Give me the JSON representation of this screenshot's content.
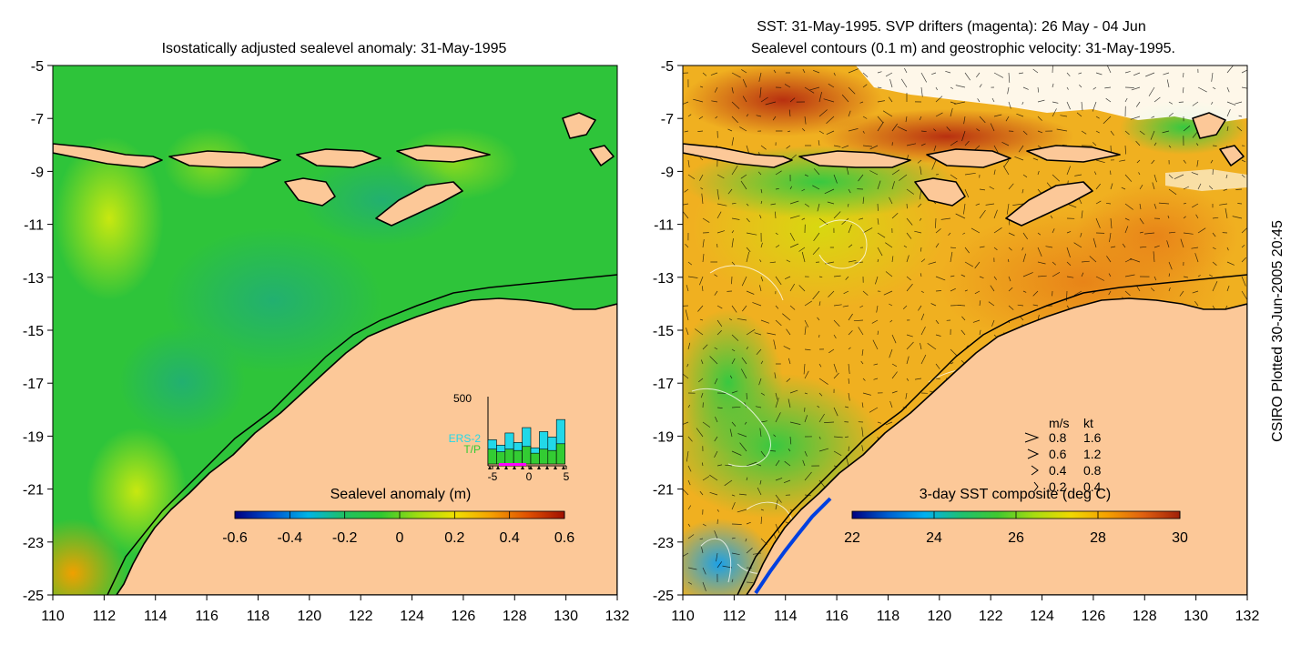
{
  "left_panel": {
    "title": "Isostatically adjusted sealevel anomaly: 31-May-1995",
    "colorbar": {
      "label": "Sealevel anomaly (m)",
      "ticks": [
        "-0.6",
        "-0.4",
        "-0.2",
        "0",
        "0.2",
        "0.4",
        "0.6"
      ],
      "stops": [
        "#000080",
        "#0050d0",
        "#00b4e6",
        "#20c060",
        "#30c830",
        "#a0dc10",
        "#f0e000",
        "#f5a000",
        "#e05000",
        "#a01000"
      ]
    },
    "inset_histogram": {
      "y_max_label": "500",
      "legend_ers2": "ERS-2",
      "legend_tp": "T/P",
      "x_ticks": [
        "-5",
        "0",
        "5"
      ],
      "ers2_color": "#22d8e8",
      "tp_color": "#33cc33",
      "highlight_color": "#ff00ff",
      "ers2_values": [
        180,
        140,
        230,
        160,
        270,
        120,
        240,
        200,
        330
      ],
      "tp_values": [
        110,
        90,
        110,
        100,
        130,
        80,
        110,
        100,
        150
      ]
    }
  },
  "right_panel": {
    "title_line1": "SST: 31-May-1995. SVP drifters (magenta): 26 May - 04 Jun",
    "title_line2": "Sealevel contours (0.1 m) and geostrophic velocity: 31-May-1995.",
    "colorbar": {
      "label": "3-day SST composite (deg C)",
      "ticks": [
        "22",
        "24",
        "26",
        "28",
        "30"
      ],
      "stops": [
        "#000080",
        "#0060d0",
        "#00b0f0",
        "#20c070",
        "#40c830",
        "#a8dc10",
        "#f0d800",
        "#f5a000",
        "#e06010",
        "#a02008"
      ]
    },
    "velocity_legend": {
      "header_ms": "m/s",
      "header_kt": "kt",
      "rows": [
        {
          "ms": "0.8",
          "kt": "1.6"
        },
        {
          "ms": "0.6",
          "kt": "1.2"
        },
        {
          "ms": "0.4",
          "kt": "0.8"
        },
        {
          "ms": "0.2",
          "kt": "0.4"
        }
      ]
    }
  },
  "axes": {
    "x_ticks": [
      "110",
      "112",
      "114",
      "116",
      "118",
      "120",
      "122",
      "124",
      "126",
      "128",
      "130",
      "132"
    ],
    "y_ticks": [
      "-5",
      "-7",
      "-9",
      "-11",
      "-13",
      "-15",
      "-17",
      "-19",
      "-21",
      "-23",
      "-25"
    ]
  },
  "credit": "CSIRO Plotted 30-Jun-2005 20:45",
  "colors": {
    "land": "#fcc898",
    "sea_anomaly": "#2ec43a",
    "sst_base": "#f0b020"
  }
}
